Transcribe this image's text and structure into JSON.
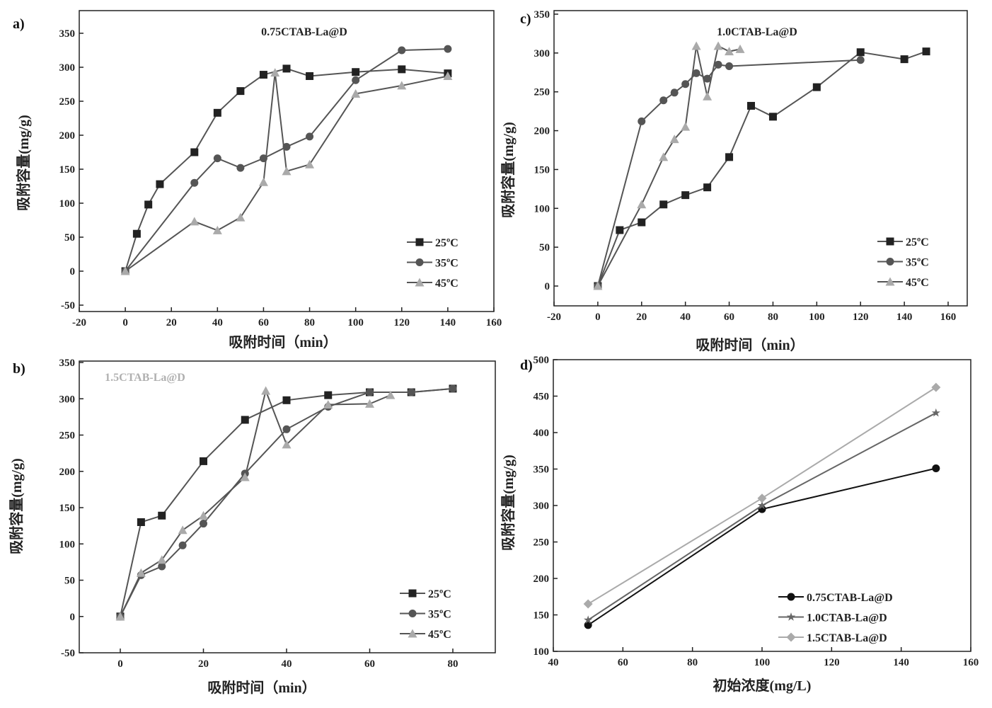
{
  "chart_data": [
    {
      "panel": "a)",
      "type": "line",
      "title": "0.75CTAB-La@D",
      "title_color": "#222222",
      "xlabel": "吸附时间（min）",
      "ylabel": "吸附容量(mg/g)",
      "xlim": [
        -20,
        160
      ],
      "ylim": [
        -50,
        350
      ],
      "xticks": [
        -20,
        0,
        20,
        40,
        60,
        80,
        100,
        120,
        140,
        160
      ],
      "yticks": [
        -50,
        0,
        50,
        100,
        150,
        200,
        250,
        300,
        350
      ],
      "legend": "bottom-right",
      "series": [
        {
          "name": "25ºC",
          "marker": "square",
          "color": "#222222",
          "x": [
            0,
            5,
            10,
            15,
            30,
            40,
            50,
            60,
            70,
            80,
            100,
            120,
            140
          ],
          "y": [
            0,
            55,
            98,
            128,
            175,
            233,
            265,
            289,
            298,
            287,
            293,
            297,
            291
          ]
        },
        {
          "name": "35ºC",
          "marker": "circle",
          "color": "#555555",
          "x": [
            0,
            30,
            40,
            50,
            60,
            70,
            80,
            100,
            120,
            140
          ],
          "y": [
            0,
            130,
            166,
            152,
            166,
            183,
            198,
            281,
            325,
            327
          ]
        },
        {
          "name": "45ºC",
          "marker": "triangle",
          "color": "#aaaaaa",
          "x": [
            0,
            30,
            40,
            50,
            60,
            65,
            70,
            80,
            100,
            120,
            140
          ],
          "y": [
            0,
            73,
            60,
            79,
            131,
            292,
            147,
            157,
            261,
            273,
            287
          ]
        }
      ]
    },
    {
      "panel": "c)",
      "type": "line",
      "title": "1.0CTAB-La@D",
      "title_color": "#222222",
      "xlabel": "吸附时间（min）",
      "ylabel": "吸附容量(mg/g)",
      "xlim": [
        -20,
        160
      ],
      "ylim": [
        0,
        350
      ],
      "xticks": [
        -20,
        0,
        20,
        40,
        60,
        80,
        100,
        120,
        140,
        160
      ],
      "yticks": [
        0,
        50,
        100,
        150,
        200,
        250,
        300,
        350
      ],
      "legend": "bottom-right",
      "series": [
        {
          "name": "25ºC",
          "marker": "square",
          "color": "#222222",
          "x": [
            0,
            10,
            20,
            30,
            40,
            50,
            60,
            70,
            80,
            100,
            120,
            140,
            150
          ],
          "y": [
            0,
            72,
            82,
            105,
            117,
            127,
            166,
            232,
            218,
            256,
            301,
            292,
            302
          ]
        },
        {
          "name": "35ºC",
          "marker": "circle",
          "color": "#555555",
          "x": [
            0,
            20,
            30,
            35,
            40,
            45,
            50,
            55,
            60,
            120
          ],
          "y": [
            0,
            212,
            239,
            249,
            260,
            274,
            267,
            285,
            283,
            291
          ]
        },
        {
          "name": "45ºC",
          "marker": "triangle",
          "color": "#aaaaaa",
          "x": [
            0,
            20,
            30,
            35,
            40,
            45,
            50,
            55,
            60,
            65
          ],
          "y": [
            0,
            105,
            166,
            189,
            205,
            309,
            244,
            309,
            302,
            305
          ]
        }
      ]
    },
    {
      "panel": "b)",
      "type": "line",
      "title": "1.5CTAB-La@D",
      "title_color": "#b0b0b0",
      "xlabel": "吸附时间（min）",
      "ylabel": "吸附容量(mg/g)",
      "xlim": [
        -10,
        90
      ],
      "ylim": [
        -50,
        350
      ],
      "xticks": [
        0,
        20,
        40,
        60,
        80
      ],
      "yticks": [
        -50,
        0,
        50,
        100,
        150,
        200,
        250,
        300,
        350
      ],
      "legend": "bottom-right",
      "series": [
        {
          "name": "25ºC",
          "marker": "square",
          "color": "#222222",
          "x": [
            0,
            5,
            10,
            20,
            30,
            40,
            50,
            60,
            70,
            80
          ],
          "y": [
            0,
            130,
            139,
            214,
            271,
            298,
            305,
            309,
            309,
            314
          ]
        },
        {
          "name": "35ºC",
          "marker": "circle",
          "color": "#555555",
          "x": [
            0,
            5,
            10,
            15,
            20,
            30,
            40,
            50,
            60,
            70,
            80
          ],
          "y": [
            0,
            57,
            69,
            98,
            128,
            197,
            258,
            289,
            309,
            309,
            314
          ]
        },
        {
          "name": "45ºC",
          "marker": "triangle",
          "color": "#aaaaaa",
          "x": [
            0,
            5,
            10,
            15,
            20,
            30,
            35,
            40,
            50,
            60,
            65
          ],
          "y": [
            0,
            60,
            78,
            119,
            139,
            192,
            311,
            237,
            292,
            293,
            305
          ]
        }
      ]
    },
    {
      "panel": "d)",
      "type": "line",
      "title": "",
      "title_color": "#222222",
      "xlabel": "初始浓度(mg/L)",
      "ylabel": "吸附容量(mg/g)",
      "xlim": [
        40,
        160
      ],
      "ylim": [
        100,
        500
      ],
      "xticks": [
        40,
        60,
        80,
        100,
        120,
        140,
        160
      ],
      "yticks": [
        100,
        150,
        200,
        250,
        300,
        350,
        400,
        450,
        500
      ],
      "legend": "bottom-right",
      "series": [
        {
          "name": "0.75CTAB-La@D",
          "marker": "circle",
          "color": "#111111",
          "x": [
            50,
            100,
            150
          ],
          "y": [
            136,
            295,
            351
          ]
        },
        {
          "name": "1.0CTAB-La@D",
          "marker": "star",
          "color": "#666666",
          "x": [
            50,
            100,
            150
          ],
          "y": [
            143,
            300,
            427
          ]
        },
        {
          "name": "1.5CTAB-La@D",
          "marker": "diamond",
          "color": "#aaaaaa",
          "x": [
            50,
            100,
            150
          ],
          "y": [
            165,
            310,
            462
          ]
        }
      ]
    }
  ]
}
